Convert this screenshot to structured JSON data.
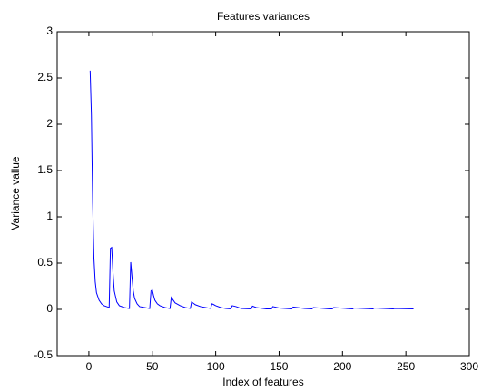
{
  "chart_data": {
    "type": "line",
    "title": "Features variances",
    "xlabel": "Index of features",
    "ylabel": "Variance vallue",
    "x": [
      1,
      2,
      3,
      4,
      5,
      6,
      8,
      10,
      12,
      14,
      16,
      17,
      18,
      19,
      20,
      22,
      24,
      28,
      32,
      33,
      34,
      35,
      36,
      38,
      40,
      44,
      48,
      49,
      50,
      51,
      52,
      54,
      56,
      60,
      64,
      65,
      66,
      67,
      68,
      72,
      76,
      80,
      81,
      82,
      84,
      88,
      92,
      96,
      97,
      98,
      100,
      104,
      108,
      112,
      113,
      116,
      120,
      128,
      129,
      132,
      140,
      144,
      145,
      150,
      160,
      161,
      170,
      176,
      177,
      190,
      192,
      193,
      208,
      209,
      224,
      225,
      240,
      241,
      256
    ],
    "series": [
      {
        "color": "#0000ff",
        "values": [
          2.58,
          2.1,
          1.15,
          0.55,
          0.3,
          0.18,
          0.1,
          0.06,
          0.04,
          0.03,
          0.02,
          0.66,
          0.67,
          0.4,
          0.2,
          0.08,
          0.04,
          0.02,
          0.01,
          0.51,
          0.35,
          0.2,
          0.12,
          0.06,
          0.03,
          0.02,
          0.01,
          0.2,
          0.21,
          0.15,
          0.1,
          0.06,
          0.04,
          0.02,
          0.01,
          0.13,
          0.11,
          0.09,
          0.07,
          0.04,
          0.02,
          0.01,
          0.08,
          0.07,
          0.05,
          0.03,
          0.02,
          0.01,
          0.06,
          0.055,
          0.04,
          0.02,
          0.01,
          0.005,
          0.04,
          0.03,
          0.01,
          0.005,
          0.035,
          0.02,
          0.005,
          0.005,
          0.03,
          0.015,
          0.005,
          0.025,
          0.01,
          0.005,
          0.02,
          0.005,
          0.005,
          0.02,
          0.005,
          0.015,
          0.005,
          0.015,
          0.005,
          0.01,
          0.005
        ]
      }
    ],
    "xlim": [
      -25,
      300
    ],
    "xticks": [
      0,
      50,
      100,
      150,
      200,
      250,
      300
    ],
    "ylim": [
      -0.5,
      3
    ],
    "yticks": [
      -0.5,
      0,
      0.5,
      1,
      1.5,
      2,
      2.5,
      3
    ]
  }
}
